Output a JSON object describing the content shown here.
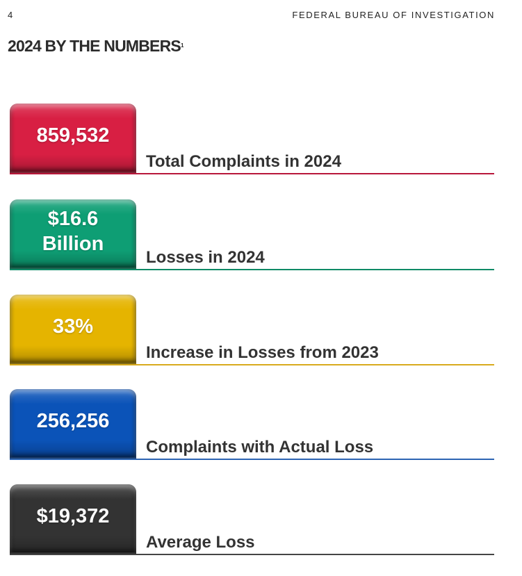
{
  "header": {
    "page_number": "4",
    "org_name": "FEDERAL BUREAU OF INVESTIGATION"
  },
  "title": {
    "text": "2024 BY THE NUMBERS",
    "footnote": "1"
  },
  "stats": [
    {
      "value": "859,532",
      "label": "Total Complaints in 2024",
      "color": "#d81f43",
      "rule_color": "#b8173a"
    },
    {
      "value": "$16.6\nBillion",
      "label": "Losses in 2024",
      "color": "#0e9e74",
      "rule_color": "#0f8a66"
    },
    {
      "value": "33%",
      "label": "Increase in Losses from 2023",
      "color": "#e5b400",
      "rule_color": "#d8aa1c"
    },
    {
      "value": "256,256",
      "label": "Complaints with Actual Loss",
      "color": "#0b53b8",
      "rule_color": "#2c64b3"
    },
    {
      "value": "$19,372",
      "label": "Average Loss",
      "color": "#333333",
      "rule_color": "#444444"
    }
  ]
}
